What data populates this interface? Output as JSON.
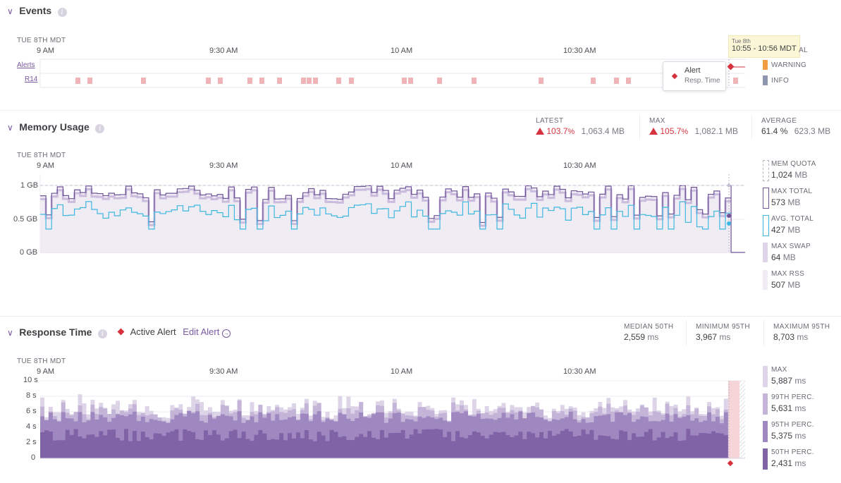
{
  "events": {
    "title": "Events",
    "date_label": "TUE 8TH MDT",
    "time_ticks": [
      "9 AM",
      "9:30 AM",
      "10 AM",
      "10:30 AM"
    ],
    "rows": [
      "Alerts",
      "R14"
    ],
    "tooltip": {
      "day": "Tue 8th",
      "range": "10:55 - 10:56 MDT",
      "partial": "AL"
    },
    "alert_popup": {
      "title": "Alert",
      "sub": "Resp. Time"
    },
    "legend": [
      {
        "label": "WARNING",
        "color": "#f29d42"
      },
      {
        "label": "INFO",
        "color": "#8e96ad"
      }
    ]
  },
  "memory": {
    "title": "Memory Usage",
    "date_label": "TUE 8TH MDT",
    "time_ticks": [
      "9 AM",
      "9:30 AM",
      "10 AM",
      "10:30 AM"
    ],
    "y_ticks": [
      "1 GB",
      "0.5 GB",
      "0 GB"
    ],
    "stats": {
      "latest": {
        "label": "LATEST",
        "pct": "103.7",
        "pct_unit": "%",
        "mb": "1,063.4 MB"
      },
      "max": {
        "label": "MAX",
        "pct": "105.7",
        "pct_unit": "%",
        "mb": "1,082.1 MB"
      },
      "average": {
        "label": "AVERAGE",
        "pct": "61.4 %",
        "mb": "623.3 MB"
      }
    },
    "legend": [
      {
        "label": "MEM QUOTA",
        "num": "1,024",
        "unit": "MB"
      },
      {
        "label": "MAX TOTAL",
        "num": "573",
        "unit": "MB"
      },
      {
        "label": "AVG. TOTAL",
        "num": "427",
        "unit": "MB"
      },
      {
        "label": "MAX SWAP",
        "num": "64",
        "unit": "MB"
      },
      {
        "label": "MAX RSS",
        "num": "507",
        "unit": "MB"
      }
    ]
  },
  "response": {
    "title": "Response Time",
    "active_alert": "Active Alert",
    "edit_alert": "Edit Alert",
    "date_label": "TUE 8TH MDT",
    "time_ticks": [
      "9 AM",
      "9:30 AM",
      "10 AM",
      "10:30 AM"
    ],
    "y_ticks": [
      "10 s",
      "8 s",
      "6 s",
      "4 s",
      "2 s",
      "0"
    ],
    "stats": {
      "median": {
        "label": "MEDIAN 50TH",
        "num": "2,559",
        "unit": "ms"
      },
      "min95": {
        "label": "MINIMUM 95TH",
        "num": "3,967",
        "unit": "ms"
      },
      "max95": {
        "label": "MAXIMUM 95TH",
        "num": "8,703",
        "unit": "ms"
      }
    },
    "legend": [
      {
        "label": "MAX",
        "num": "5,887",
        "unit": "ms"
      },
      {
        "label": "99TH PERC.",
        "num": "5,631",
        "unit": "ms"
      },
      {
        "label": "95TH PERC.",
        "num": "5,375",
        "unit": "ms"
      },
      {
        "label": "50TH PERC.",
        "num": "2,431",
        "unit": "ms"
      }
    ]
  },
  "colors": {
    "accent": "#79589f",
    "alert_red": "#d6333f",
    "r14_pink": "#f0b4b8",
    "avg_line": "#3fb8e0",
    "max_line": "#6f5498",
    "area_fill": "#efecf4"
  }
}
